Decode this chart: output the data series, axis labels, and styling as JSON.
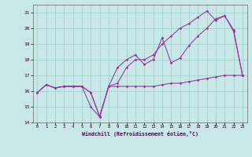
{
  "xlabel": "Windchill (Refroidissement éolien,°C)",
  "background_color": "#c8e8e8",
  "grid_color": "#9ecece",
  "line_color": "#993399",
  "hours": [
    0,
    1,
    2,
    3,
    4,
    5,
    6,
    7,
    8,
    9,
    10,
    11,
    12,
    13,
    14,
    15,
    16,
    17,
    18,
    19,
    20,
    21,
    22,
    23
  ],
  "curve1": [
    15.9,
    16.4,
    16.2,
    16.3,
    16.3,
    16.3,
    15.9,
    14.4,
    16.3,
    16.3,
    16.3,
    16.3,
    16.3,
    16.3,
    16.4,
    16.5,
    16.5,
    16.6,
    16.7,
    16.8,
    16.9,
    17.0,
    17.0,
    17.0
  ],
  "curve2": [
    15.9,
    16.4,
    16.2,
    16.3,
    16.3,
    16.3,
    15.0,
    14.35,
    16.3,
    17.5,
    18.0,
    18.3,
    17.7,
    18.0,
    19.4,
    17.8,
    18.1,
    18.9,
    19.5,
    20.0,
    20.6,
    20.8,
    19.9,
    17.0
  ],
  "curve3": [
    15.9,
    16.4,
    16.2,
    16.3,
    16.3,
    16.3,
    15.9,
    14.35,
    16.3,
    16.5,
    17.5,
    18.0,
    18.0,
    18.3,
    19.0,
    19.5,
    20.0,
    20.3,
    20.7,
    21.1,
    20.5,
    20.8,
    19.8,
    17.0
  ],
  "ylim": [
    14,
    21.5
  ],
  "xlim": [
    -0.5,
    23.5
  ],
  "yticks": [
    14,
    15,
    16,
    17,
    18,
    19,
    20,
    21
  ],
  "xticks": [
    0,
    1,
    2,
    3,
    4,
    5,
    6,
    7,
    8,
    9,
    10,
    11,
    12,
    13,
    14,
    15,
    16,
    17,
    18,
    19,
    20,
    21,
    22,
    23
  ]
}
